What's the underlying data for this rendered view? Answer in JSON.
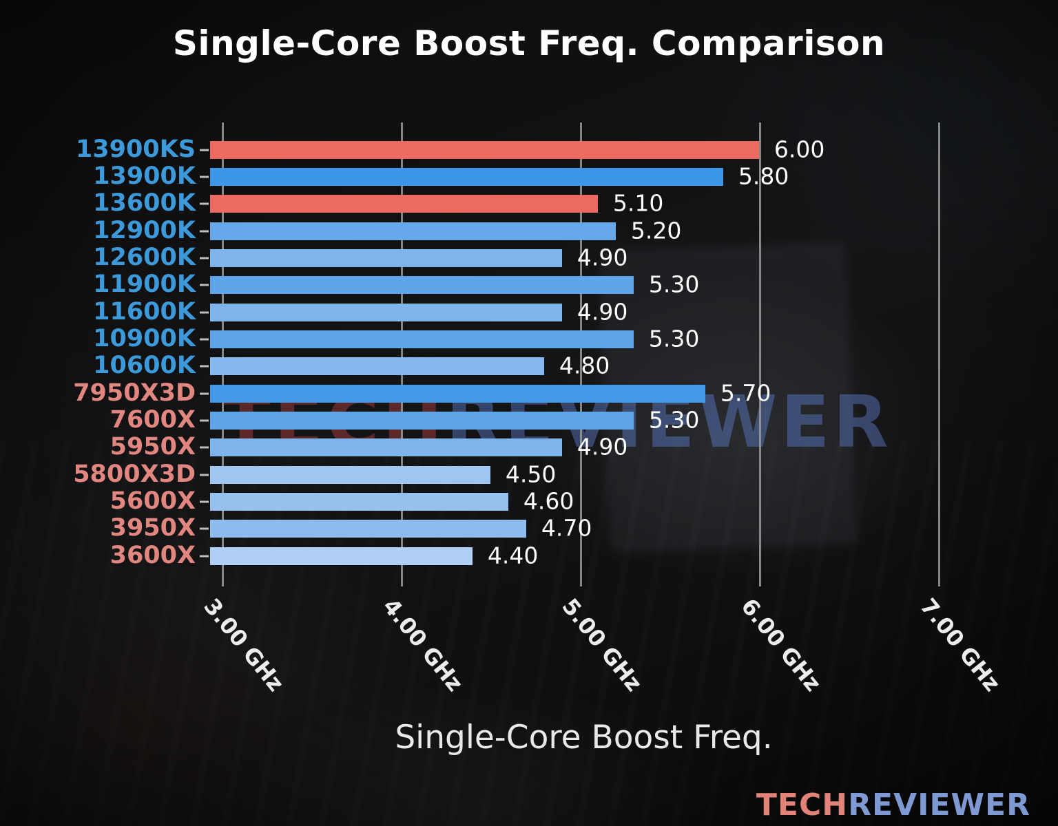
{
  "chart_data": {
    "type": "bar",
    "orientation": "horizontal",
    "title": "Single-Core Boost Freq. Comparison",
    "xlabel": "Single-Core Boost Freq.",
    "x_unit": "GHz",
    "xlim": [
      3.0,
      7.0
    ],
    "grid": true,
    "legend": "none",
    "x_ticks": [
      {
        "value": 3.0,
        "label": "3.00 GHz"
      },
      {
        "value": 4.0,
        "label": "4.00 GHz"
      },
      {
        "value": 5.0,
        "label": "5.00 GHz"
      },
      {
        "value": 6.0,
        "label": "6.00 GHz"
      },
      {
        "value": 7.0,
        "label": "7.00 GHz"
      }
    ],
    "bars": [
      {
        "category": "13900KS",
        "value": 6.0,
        "value_label": "6.00",
        "bar_color": "#ec6a5f",
        "label_color": "#3c99da"
      },
      {
        "category": "13900K",
        "value": 5.8,
        "value_label": "5.80",
        "bar_color": "#3d96e8",
        "label_color": "#3c99da"
      },
      {
        "category": "13600K",
        "value": 5.1,
        "value_label": "5.10",
        "bar_color": "#ec6a5f",
        "label_color": "#3c99da"
      },
      {
        "category": "12900K",
        "value": 5.2,
        "value_label": "5.20",
        "bar_color": "#66a8ea",
        "label_color": "#3c99da"
      },
      {
        "category": "12600K",
        "value": 4.9,
        "value_label": "4.90",
        "bar_color": "#7db4ec",
        "label_color": "#3c99da"
      },
      {
        "category": "11900K",
        "value": 5.3,
        "value_label": "5.30",
        "bar_color": "#5fa5e9",
        "label_color": "#3c99da"
      },
      {
        "category": "11600K",
        "value": 4.9,
        "value_label": "4.90",
        "bar_color": "#7db4ec",
        "label_color": "#3c99da"
      },
      {
        "category": "10900K",
        "value": 5.3,
        "value_label": "5.30",
        "bar_color": "#5fa5e9",
        "label_color": "#3c99da"
      },
      {
        "category": "10600K",
        "value": 4.8,
        "value_label": "4.80",
        "bar_color": "#85b8ed",
        "label_color": "#3c99da"
      },
      {
        "category": "7950X3D",
        "value": 5.7,
        "value_label": "5.70",
        "bar_color": "#459ae8",
        "label_color": "#e28680"
      },
      {
        "category": "7600X",
        "value": 5.3,
        "value_label": "5.30",
        "bar_color": "#5fa5e9",
        "label_color": "#e28680"
      },
      {
        "category": "5950X",
        "value": 4.9,
        "value_label": "4.90",
        "bar_color": "#7db4ec",
        "label_color": "#e28680"
      },
      {
        "category": "5800X3D",
        "value": 4.5,
        "value_label": "4.50",
        "bar_color": "#9ec6f1",
        "label_color": "#e28680"
      },
      {
        "category": "5600X",
        "value": 4.6,
        "value_label": "4.60",
        "bar_color": "#96c1ef",
        "label_color": "#e28680"
      },
      {
        "category": "3950X",
        "value": 4.7,
        "value_label": "4.70",
        "bar_color": "#8dbcee",
        "label_color": "#e28680"
      },
      {
        "category": "3600X",
        "value": 4.4,
        "value_label": "4.40",
        "bar_color": "#afcff4",
        "label_color": "#e28680"
      }
    ],
    "colors": {
      "intel_label": "#3c99da",
      "amd_label": "#e28680",
      "highlight_bar": "#ec6a5f",
      "gridline": "#9a9a9a",
      "value_text": "#ffffff",
      "title_text": "#ffffff"
    }
  },
  "watermark": {
    "tech": "TECH",
    "reviewer": "REVIEWER"
  },
  "logo": {
    "tech": "TECH",
    "reviewer": "REVIEWER"
  }
}
